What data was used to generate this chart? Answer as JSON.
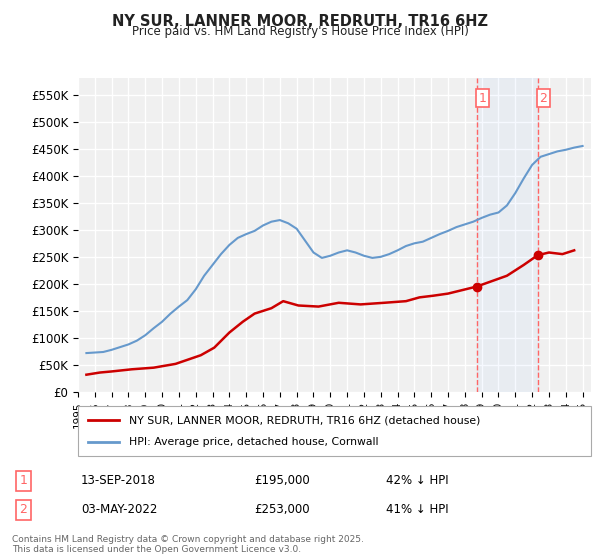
{
  "title": "NY SUR, LANNER MOOR, REDRUTH, TR16 6HZ",
  "subtitle": "Price paid vs. HM Land Registry's House Price Index (HPI)",
  "ylabel_ticks": [
    "£0",
    "£50K",
    "£100K",
    "£150K",
    "£200K",
    "£250K",
    "£300K",
    "£350K",
    "£400K",
    "£450K",
    "£500K",
    "£550K"
  ],
  "ytick_values": [
    0,
    50000,
    100000,
    150000,
    200000,
    250000,
    300000,
    350000,
    400000,
    450000,
    500000,
    550000
  ],
  "ylim": [
    0,
    580000
  ],
  "xlim_start": 1995.0,
  "xlim_end": 2025.5,
  "background_color": "#ffffff",
  "plot_bg_color": "#f0f0f0",
  "grid_color": "#ffffff",
  "hpi_color": "#6699cc",
  "price_color": "#cc0000",
  "vline1_x": 2018.7,
  "vline2_x": 2022.33,
  "vline_color": "#ff6666",
  "marker1_price": 195000,
  "marker2_price": 253000,
  "marker1_year": 2018.7,
  "marker2_year": 2022.33,
  "legend_line1": "NY SUR, LANNER MOOR, REDRUTH, TR16 6HZ (detached house)",
  "legend_line2": "HPI: Average price, detached house, Cornwall",
  "table_row1": [
    "1",
    "13-SEP-2018",
    "£195,000",
    "42% ↓ HPI"
  ],
  "table_row2": [
    "2",
    "03-MAY-2022",
    "£253,000",
    "41% ↓ HPI"
  ],
  "footnote": "Contains HM Land Registry data © Crown copyright and database right 2025.\nThis data is licensed under the Open Government Licence v3.0.",
  "hpi_data_x": [
    1995.5,
    1996.0,
    1996.5,
    1997.0,
    1997.5,
    1998.0,
    1998.5,
    1999.0,
    1999.5,
    2000.0,
    2000.5,
    2001.0,
    2001.5,
    2002.0,
    2002.5,
    2003.0,
    2003.5,
    2004.0,
    2004.5,
    2005.0,
    2005.5,
    2006.0,
    2006.5,
    2007.0,
    2007.5,
    2008.0,
    2008.5,
    2009.0,
    2009.5,
    2010.0,
    2010.5,
    2011.0,
    2011.5,
    2012.0,
    2012.5,
    2013.0,
    2013.5,
    2014.0,
    2014.5,
    2015.0,
    2015.5,
    2016.0,
    2016.5,
    2017.0,
    2017.5,
    2018.0,
    2018.5,
    2019.0,
    2019.5,
    2020.0,
    2020.5,
    2021.0,
    2021.5,
    2022.0,
    2022.5,
    2023.0,
    2023.5,
    2024.0,
    2024.5,
    2025.0
  ],
  "hpi_data_y": [
    72000,
    73000,
    74000,
    78000,
    83000,
    88000,
    95000,
    105000,
    118000,
    130000,
    145000,
    158000,
    170000,
    190000,
    215000,
    235000,
    255000,
    272000,
    285000,
    292000,
    298000,
    308000,
    315000,
    318000,
    312000,
    302000,
    280000,
    258000,
    248000,
    252000,
    258000,
    262000,
    258000,
    252000,
    248000,
    250000,
    255000,
    262000,
    270000,
    275000,
    278000,
    285000,
    292000,
    298000,
    305000,
    310000,
    315000,
    322000,
    328000,
    332000,
    345000,
    368000,
    395000,
    420000,
    435000,
    440000,
    445000,
    448000,
    452000,
    455000
  ],
  "price_data_x": [
    1995.5,
    1996.3,
    1997.0,
    1998.2,
    1999.5,
    2000.8,
    2002.3,
    2003.1,
    2004.0,
    2004.8,
    2005.5,
    2006.5,
    2007.2,
    2008.1,
    2009.3,
    2010.5,
    2011.8,
    2013.2,
    2014.5,
    2015.3,
    2016.1,
    2017.0,
    2018.7,
    2020.5,
    2021.5,
    2022.33,
    2023.0,
    2023.8,
    2024.5
  ],
  "price_data_y": [
    32000,
    36000,
    38000,
    42000,
    45000,
    52000,
    68000,
    82000,
    110000,
    130000,
    145000,
    155000,
    168000,
    160000,
    158000,
    165000,
    162000,
    165000,
    168000,
    175000,
    178000,
    182000,
    195000,
    215000,
    235000,
    253000,
    258000,
    255000,
    262000
  ]
}
